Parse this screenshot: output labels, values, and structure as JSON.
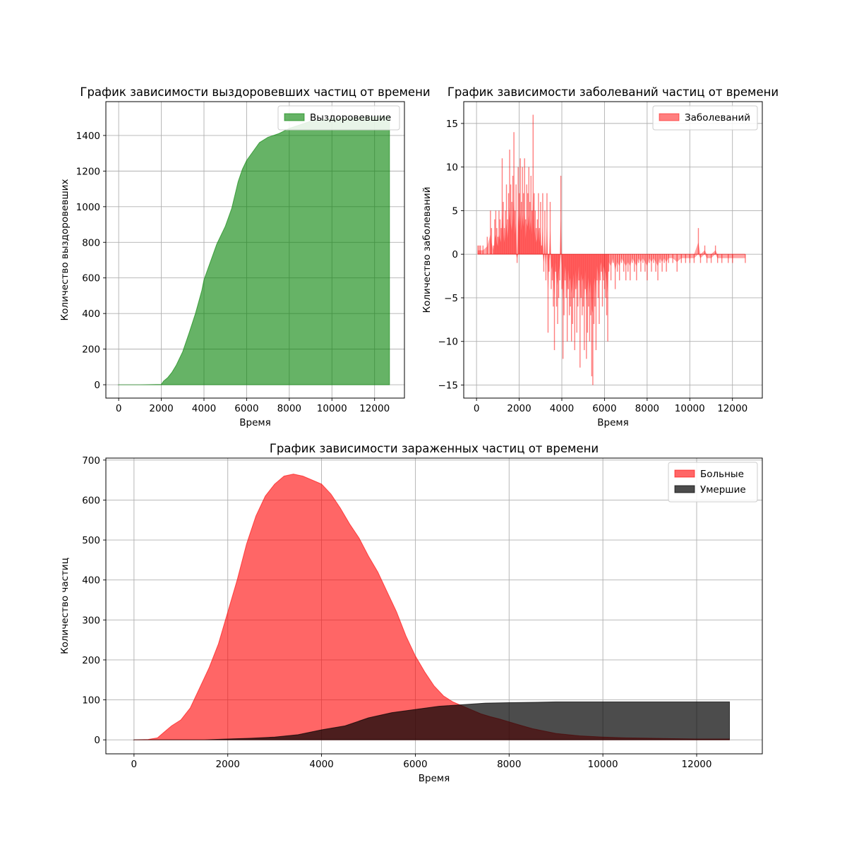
{
  "chart_data": [
    {
      "type": "area",
      "title": "График зависимости выздоровевших частиц от времени",
      "xlabel": "Время",
      "ylabel": "Количество выздоровевших",
      "xlim": [
        -600,
        13400
      ],
      "ylim": [
        -75,
        1590
      ],
      "xticks": [
        0,
        2000,
        4000,
        6000,
        8000,
        10000,
        12000
      ],
      "yticks": [
        0,
        200,
        400,
        600,
        800,
        1000,
        1200,
        1400
      ],
      "grid": true,
      "legend_position": "top-right",
      "series": [
        {
          "name": "Выздоровевшие",
          "color": "#008000",
          "opacity": 0.6,
          "points": [
            [
              0,
              0
            ],
            [
              1000,
              0
            ],
            [
              2000,
              2
            ],
            [
              2100,
              20
            ],
            [
              2300,
              40
            ],
            [
              2500,
              70
            ],
            [
              2700,
              110
            ],
            [
              3000,
              185
            ],
            [
              3300,
              290
            ],
            [
              3600,
              400
            ],
            [
              3900,
              530
            ],
            [
              4000,
              590
            ],
            [
              4300,
              690
            ],
            [
              4600,
              790
            ],
            [
              5000,
              890
            ],
            [
              5300,
              990
            ],
            [
              5600,
              1140
            ],
            [
              5800,
              1210
            ],
            [
              6000,
              1260
            ],
            [
              6300,
              1310
            ],
            [
              6600,
              1360
            ],
            [
              7000,
              1390
            ],
            [
              7500,
              1410
            ],
            [
              8000,
              1440
            ],
            [
              8500,
              1460
            ],
            [
              9000,
              1480
            ],
            [
              10000,
              1495
            ],
            [
              11000,
              1500
            ],
            [
              12000,
              1505
            ],
            [
              12700,
              1505
            ]
          ],
          "drop_to_zero_at": 12700
        }
      ]
    },
    {
      "type": "bar",
      "title": "График зависимости заболеваний частиц от времени",
      "xlabel": "Время",
      "ylabel": "Количество заболеваний",
      "xlim": [
        -600,
        13400
      ],
      "ylim": [
        -16.5,
        17.5
      ],
      "xticks": [
        0,
        2000,
        4000,
        6000,
        8000,
        10000,
        12000
      ],
      "yticks": [
        -15,
        -10,
        -5,
        0,
        5,
        10,
        15
      ],
      "grid": true,
      "legend_position": "top-right",
      "series": [
        {
          "name": "Заболеваний",
          "color": "#ff0000",
          "opacity": 0.5,
          "points": [
            [
              60,
              1
            ],
            [
              120,
              1
            ],
            [
              180,
              1
            ],
            [
              300,
              1
            ],
            [
              500,
              2
            ],
            [
              650,
              5
            ],
            [
              700,
              3
            ],
            [
              800,
              1
            ],
            [
              850,
              4
            ],
            [
              900,
              5
            ],
            [
              950,
              3
            ],
            [
              1000,
              2
            ],
            [
              1050,
              5
            ],
            [
              1100,
              4
            ],
            [
              1150,
              3
            ],
            [
              1200,
              11
            ],
            [
              1250,
              6
            ],
            [
              1300,
              3
            ],
            [
              1350,
              5
            ],
            [
              1400,
              8
            ],
            [
              1450,
              4
            ],
            [
              1500,
              7
            ],
            [
              1550,
              12
            ],
            [
              1600,
              8
            ],
            [
              1650,
              6
            ],
            [
              1700,
              9
            ],
            [
              1750,
              14
            ],
            [
              1800,
              5
            ],
            [
              1850,
              8
            ],
            [
              1900,
              -1
            ],
            [
              1950,
              10
            ],
            [
              2000,
              7
            ],
            [
              2050,
              11
            ],
            [
              2100,
              6
            ],
            [
              2150,
              10
            ],
            [
              2200,
              7
            ],
            [
              2250,
              11
            ],
            [
              2300,
              4
            ],
            [
              2350,
              8
            ],
            [
              2400,
              7
            ],
            [
              2450,
              10
            ],
            [
              2500,
              6
            ],
            [
              2550,
              9
            ],
            [
              2600,
              5
            ],
            [
              2650,
              16
            ],
            [
              2700,
              7
            ],
            [
              2750,
              5
            ],
            [
              2800,
              3
            ],
            [
              2850,
              4
            ],
            [
              2900,
              7
            ],
            [
              2950,
              3
            ],
            [
              3000,
              6
            ],
            [
              3050,
              1
            ],
            [
              3100,
              7
            ],
            [
              3150,
              -2
            ],
            [
              3200,
              5
            ],
            [
              3250,
              -3
            ],
            [
              3300,
              7
            ],
            [
              3350,
              -9
            ],
            [
              3400,
              -2
            ],
            [
              3450,
              6
            ],
            [
              3500,
              -4
            ],
            [
              3550,
              -3
            ],
            [
              3600,
              -6
            ],
            [
              3650,
              -11
            ],
            [
              3700,
              -2
            ],
            [
              3750,
              -6
            ],
            [
              3800,
              -8
            ],
            [
              3850,
              -5
            ],
            [
              3900,
              -3
            ],
            [
              3950,
              9
            ],
            [
              4000,
              -4
            ],
            [
              4050,
              -12
            ],
            [
              4100,
              -7
            ],
            [
              4150,
              -3
            ],
            [
              4200,
              -5
            ],
            [
              4250,
              -10
            ],
            [
              4300,
              -4
            ],
            [
              4350,
              -7
            ],
            [
              4400,
              -6
            ],
            [
              4450,
              -10
            ],
            [
              4500,
              -8
            ],
            [
              4550,
              -5
            ],
            [
              4600,
              -11
            ],
            [
              4650,
              -4
            ],
            [
              4700,
              -9
            ],
            [
              4750,
              -6
            ],
            [
              4800,
              -3
            ],
            [
              4850,
              -13
            ],
            [
              4900,
              -5
            ],
            [
              4950,
              -7
            ],
            [
              5000,
              -6
            ],
            [
              5050,
              -11
            ],
            [
              5100,
              -4
            ],
            [
              5150,
              -12
            ],
            [
              5200,
              -9
            ],
            [
              5250,
              -6
            ],
            [
              5300,
              -10
            ],
            [
              5350,
              -7
            ],
            [
              5400,
              -14
            ],
            [
              5450,
              -15
            ],
            [
              5500,
              -8
            ],
            [
              5550,
              -6
            ],
            [
              5600,
              -11
            ],
            [
              5650,
              -3
            ],
            [
              5700,
              -5
            ],
            [
              5750,
              -8
            ],
            [
              5800,
              -3
            ],
            [
              5850,
              -2
            ],
            [
              5900,
              -6
            ],
            [
              5950,
              -3
            ],
            [
              6000,
              -4
            ],
            [
              6050,
              -5
            ],
            [
              6100,
              -7
            ],
            [
              6150,
              -10
            ],
            [
              6200,
              -2
            ],
            [
              6300,
              -3
            ],
            [
              6400,
              -1
            ],
            [
              6500,
              -4
            ],
            [
              6600,
              -2
            ],
            [
              6700,
              -3
            ],
            [
              6800,
              -1
            ],
            [
              6900,
              -2
            ],
            [
              7000,
              -3
            ],
            [
              7100,
              -2
            ],
            [
              7200,
              -3
            ],
            [
              7300,
              -1
            ],
            [
              7400,
              -2
            ],
            [
              7500,
              -3
            ],
            [
              7600,
              -1
            ],
            [
              7700,
              -2
            ],
            [
              7800,
              -1
            ],
            [
              7900,
              -2
            ],
            [
              8000,
              -3
            ],
            [
              8100,
              -1
            ],
            [
              8200,
              -2
            ],
            [
              8300,
              -1
            ],
            [
              8400,
              -2
            ],
            [
              8500,
              -3
            ],
            [
              8600,
              -1
            ],
            [
              8700,
              -2
            ],
            [
              8800,
              -1
            ],
            [
              8900,
              -2
            ],
            [
              9000,
              -1
            ],
            [
              9200,
              -1
            ],
            [
              9400,
              -2
            ],
            [
              9600,
              -1
            ],
            [
              9800,
              -1
            ],
            [
              10000,
              -1
            ],
            [
              10200,
              -1
            ],
            [
              10400,
              3
            ],
            [
              10500,
              -1
            ],
            [
              10700,
              1
            ],
            [
              10800,
              -1
            ],
            [
              11000,
              -1
            ],
            [
              11200,
              1
            ],
            [
              11300,
              -1
            ],
            [
              11500,
              -1
            ],
            [
              11800,
              -1
            ],
            [
              12000,
              -1
            ],
            [
              12600,
              -1
            ]
          ]
        }
      ]
    },
    {
      "type": "area",
      "title": "График зависимости зараженных частиц от времени",
      "xlabel": "Время",
      "ylabel": "Количество частиц",
      "xlim": [
        -600,
        13400
      ],
      "ylim": [
        -35,
        705
      ],
      "xticks": [
        0,
        2000,
        4000,
        6000,
        8000,
        10000,
        12000
      ],
      "yticks": [
        0,
        100,
        200,
        300,
        400,
        500,
        600,
        700
      ],
      "grid": true,
      "legend_position": "top-right",
      "series": [
        {
          "name": "Больные",
          "color": "#ff0000",
          "opacity": 0.6,
          "points": [
            [
              0,
              0
            ],
            [
              300,
              1
            ],
            [
              500,
              5
            ],
            [
              600,
              15
            ],
            [
              700,
              25
            ],
            [
              800,
              35
            ],
            [
              1000,
              50
            ],
            [
              1200,
              80
            ],
            [
              1400,
              130
            ],
            [
              1600,
              180
            ],
            [
              1800,
              240
            ],
            [
              2000,
              320
            ],
            [
              2200,
              400
            ],
            [
              2400,
              490
            ],
            [
              2600,
              560
            ],
            [
              2800,
              610
            ],
            [
              3000,
              640
            ],
            [
              3200,
              660
            ],
            [
              3400,
              665
            ],
            [
              3600,
              660
            ],
            [
              3800,
              650
            ],
            [
              4000,
              640
            ],
            [
              4200,
              615
            ],
            [
              4400,
              580
            ],
            [
              4600,
              540
            ],
            [
              4800,
              505
            ],
            [
              5000,
              460
            ],
            [
              5200,
              420
            ],
            [
              5400,
              370
            ],
            [
              5600,
              320
            ],
            [
              5800,
              260
            ],
            [
              6000,
              210
            ],
            [
              6200,
              170
            ],
            [
              6400,
              135
            ],
            [
              6600,
              110
            ],
            [
              6800,
              95
            ],
            [
              7000,
              85
            ],
            [
              7200,
              75
            ],
            [
              7400,
              65
            ],
            [
              7600,
              58
            ],
            [
              7800,
              52
            ],
            [
              8000,
              45
            ],
            [
              8200,
              38
            ],
            [
              8500,
              28
            ],
            [
              9000,
              16
            ],
            [
              9500,
              10
            ],
            [
              10000,
              7
            ],
            [
              10500,
              5
            ],
            [
              11000,
              4
            ],
            [
              11500,
              3
            ],
            [
              12000,
              2
            ],
            [
              12700,
              2
            ]
          ],
          "drop_to_zero_at": 12700
        },
        {
          "name": "Умершие",
          "color": "#000000",
          "opacity": 0.7,
          "points": [
            [
              0,
              0
            ],
            [
              1500,
              0
            ],
            [
              2000,
              2
            ],
            [
              2500,
              4
            ],
            [
              3000,
              7
            ],
            [
              3500,
              13
            ],
            [
              4000,
              25
            ],
            [
              4500,
              35
            ],
            [
              5000,
              55
            ],
            [
              5500,
              68
            ],
            [
              6000,
              76
            ],
            [
              6500,
              84
            ],
            [
              7000,
              88
            ],
            [
              7500,
              92
            ],
            [
              8000,
              93
            ],
            [
              8500,
              94
            ],
            [
              9000,
              95
            ],
            [
              10000,
              95
            ],
            [
              11000,
              95
            ],
            [
              12000,
              95
            ],
            [
              12700,
              95
            ]
          ],
          "drop_to_zero_at": 12700
        }
      ]
    }
  ]
}
